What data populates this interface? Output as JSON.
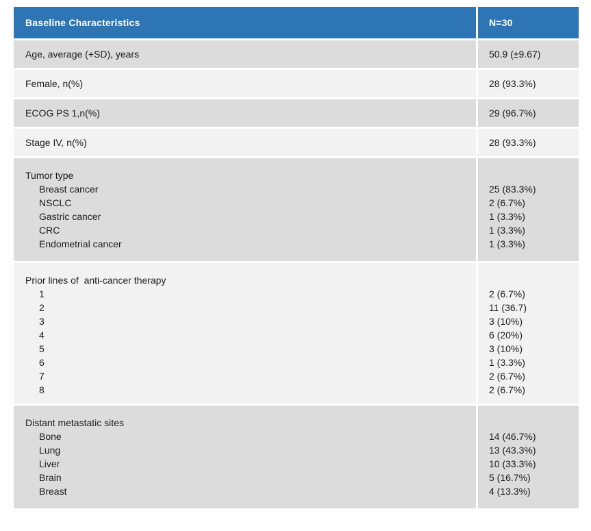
{
  "table": {
    "header": {
      "col1": "Baseline Characteristics",
      "col2": "N=30"
    },
    "simple_rows": [
      {
        "label": "Age, average (+SD), years",
        "value": "50.9 (±9.67)",
        "shade": "dark"
      },
      {
        "label": "Female, n(%)",
        "value": "28 (93.3%)",
        "shade": "light"
      },
      {
        "label": "ECOG PS 1,n(%)",
        "value": "29 (96.7%)",
        "shade": "dark"
      },
      {
        "label": "Stage IV, n(%)",
        "value": "28 (93.3%)",
        "shade": "light"
      }
    ],
    "group_rows": [
      {
        "label": "Tumor type",
        "shade": "dark",
        "items": [
          {
            "label": "Breast cancer",
            "value": "25 (83.3%)"
          },
          {
            "label": "NSCLC",
            "value": "2 (6.7%)"
          },
          {
            "label": "Gastric cancer",
            "value": "1 (3.3%)"
          },
          {
            "label": "CRC",
            "value": "1 (3.3%)"
          },
          {
            "label": "Endometrial cancer",
            "value": "1 (3.3%)"
          }
        ]
      },
      {
        "label": "Prior lines of  anti-cancer therapy",
        "shade": "light",
        "items": [
          {
            "label": "1",
            "value": "2 (6.7%)"
          },
          {
            "label": "2",
            "value": "11 (36.7)"
          },
          {
            "label": "3",
            "value": "3 (10%)"
          },
          {
            "label": "4",
            "value": "6 (20%)"
          },
          {
            "label": "5",
            "value": "3 (10%)"
          },
          {
            "label": "6",
            "value": "1 (3.3%)"
          },
          {
            "label": "7",
            "value": "2 (6.7%)"
          },
          {
            "label": "8",
            "value": "2 (6.7%)"
          }
        ]
      },
      {
        "label": "Distant metastatic sites",
        "shade": "dark",
        "items": [
          {
            "label": "Bone",
            "value": "14 (46.7%)"
          },
          {
            "label": "Lung",
            "value": "13 (43.3%)"
          },
          {
            "label": "Liver",
            "value": "10 (33.3%)"
          },
          {
            "label": "Brain",
            "value": "5 (16.7%)"
          },
          {
            "label": "Breast",
            "value": "4 (13.3%)"
          }
        ]
      }
    ],
    "colors": {
      "header_bg": "#2E75B6",
      "header_text": "#FFFFFF",
      "row_dark": "#DCDCDC",
      "row_light": "#F2F2F2",
      "divider": "#FFFFFF"
    }
  }
}
